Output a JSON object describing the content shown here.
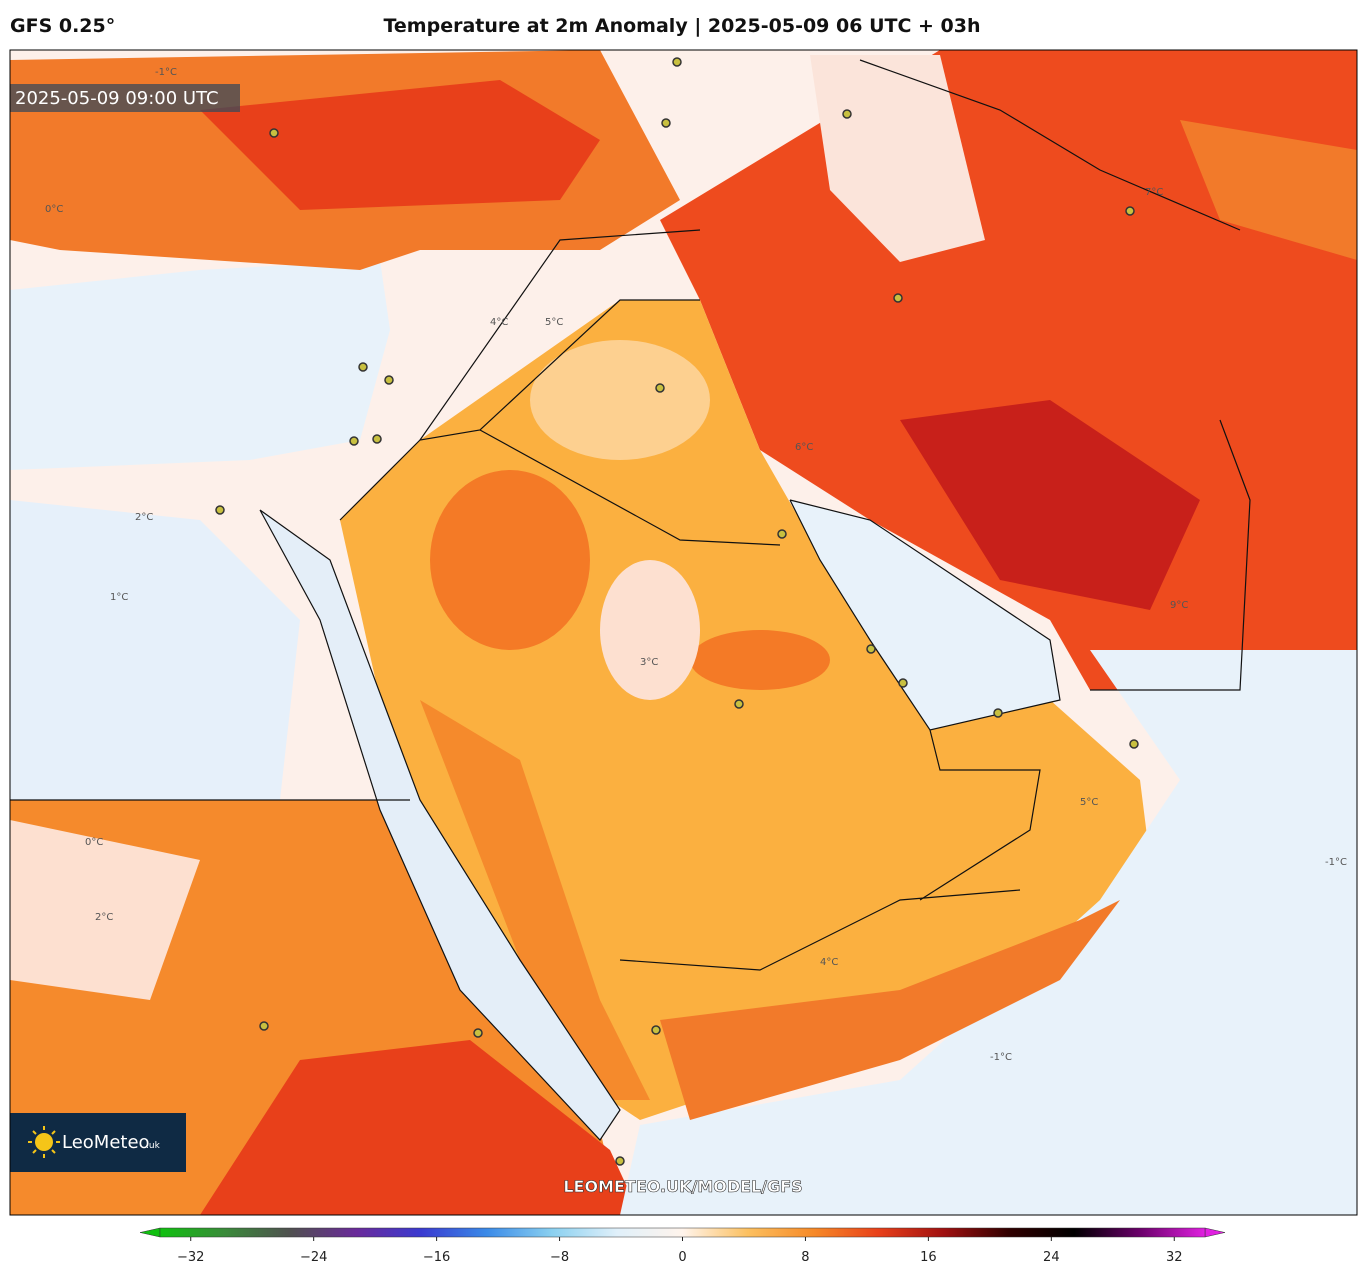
{
  "header": {
    "model": "GFS 0.25°",
    "title": "Temperature at 2m Anomaly | 2025-05-09 06 UTC + 03h"
  },
  "map": {
    "valid_time": "2025-05-09 09:00 UTC",
    "watermark": "LEOMETEO.UK/MODEL/GFS",
    "contour_labels": [
      "4°C",
      "5°C",
      "2°C",
      "-1°C",
      "0°C",
      "1°C",
      "3°C",
      "6°C",
      "9°C",
      "7°C",
      "4°C",
      "-1°C",
      "5°C",
      "2°C",
      "0°C",
      "-1°C"
    ]
  },
  "logo": {
    "name": "LeoMeteo",
    "suffix": ".uk"
  },
  "colorbar": {
    "lim": [
      -34,
      34
    ],
    "ticks": [
      -32,
      -24,
      -16,
      -8,
      0,
      8,
      16,
      24,
      32
    ],
    "colors": [
      "#10c010",
      "#3a8a3a",
      "#505050",
      "#6a2a9a",
      "#3a3ad0",
      "#3a8ae8",
      "#8ad0f0",
      "#e0f0fa",
      "#fff4ec",
      "#fcc060",
      "#f68a28",
      "#e8401a",
      "#a01010",
      "#300000",
      "#000000",
      "#6a006a",
      "#e020e0"
    ]
  }
}
